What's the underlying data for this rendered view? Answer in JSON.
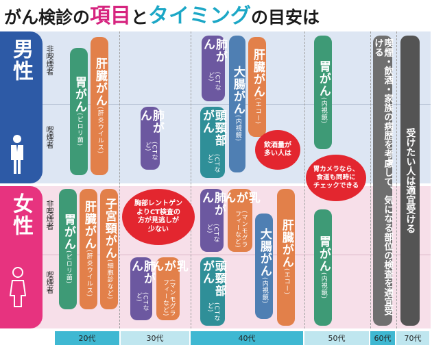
{
  "title": {
    "part1": "がん検診の",
    "part2": "項目",
    "part3": "と",
    "part4": "タイミング",
    "part5": "の目安",
    "part6": "は"
  },
  "male": {
    "label": "男性",
    "nonsmoker_label": "非喫煙者",
    "smoker_label": "喫煙者",
    "items": {
      "stomach_pylori": {
        "main": "胃がん",
        "sub": "(ピロリ菌)"
      },
      "liver_virus": {
        "main": "肝臓がん",
        "sub": "(肝炎ウイルス)"
      },
      "lung_ct_30": {
        "main": "肺がん",
        "sub": "(CTなど)"
      },
      "lung_ct_40": {
        "main": "肺がん",
        "sub": "(CTなど)"
      },
      "colon": {
        "main": "大腸がん",
        "sub": "(内視鏡)"
      },
      "headneck": {
        "main": "頭頸部がん",
        "sub": "(CTなど)"
      },
      "liver_echo": {
        "main": "肝臓がん",
        "sub": "(エコー)"
      },
      "stomach_endo": {
        "main": "胃がん",
        "sub": "(内視鏡)"
      }
    },
    "bubble_alcohol": "飲酒量が\n多い人は",
    "bubble_camera": "胃カメラなら、\n食道も同時に\nチェックできる"
  },
  "female": {
    "label": "女性",
    "nonsmoker_label": "非喫煙者",
    "smoker_label": "喫煙者",
    "items": {
      "stomach_pylori": {
        "main": "胃がん",
        "sub": "(ピロリ菌)"
      },
      "liver_virus": {
        "main": "肝臓がん",
        "sub": "(肝炎ウイルス)"
      },
      "cervical": {
        "main": "子宮頸がん",
        "sub": "(細胞診など)"
      },
      "lung_ct_30": {
        "main": "肺がん",
        "sub": "(CTなど)"
      },
      "breast_30": {
        "main": "乳がん",
        "sub": "(マンモグラフィーなど)"
      },
      "lung_ct_40": {
        "main": "肺がん",
        "sub": "(CTなど)"
      },
      "breast_40": {
        "main": "乳がん",
        "sub": "(マンモグラフィーなど)"
      },
      "headneck": {
        "main": "頭頸部がん",
        "sub": "(CTなど)"
      },
      "colon": {
        "main": "大腸がん",
        "sub": "(内視鏡)"
      },
      "liver_echo": {
        "main": "肝臓がん",
        "sub": "(エコー)"
      },
      "stomach_endo": {
        "main": "胃がん",
        "sub": "(内視鏡)"
      }
    },
    "bubble_chest": "胸部レントゲン\nよりCT検査の\n方が見逃しが\n少ない"
  },
  "shared": {
    "sixties_text": "喫煙・飲酒・家族の病歴を考慮して、気になる部位の検査を適宜受ける",
    "seventies_text": "受けたい人は適宜受ける"
  },
  "axis": [
    "20代",
    "30代",
    "40代",
    "50代",
    "60代",
    "70代"
  ],
  "colors": {
    "male_panel": "#2d5aa6",
    "female_panel": "#e7337f",
    "title_magenta": "#d6247f",
    "title_cyan": "#1ca7c6",
    "bubble_red": "#e3262f"
  }
}
